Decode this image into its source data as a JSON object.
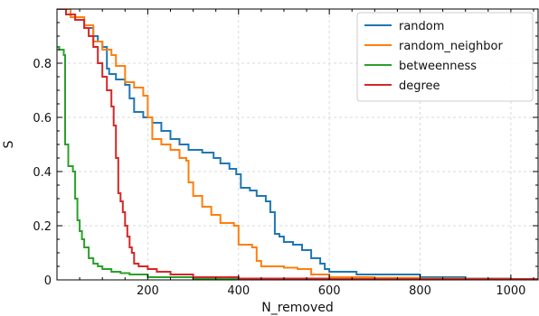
{
  "chart_data": {
    "type": "line",
    "title": "",
    "xlabel": "N_removed",
    "ylabel": "S",
    "xlim": [
      0,
      1060
    ],
    "ylim": [
      0,
      1.0
    ],
    "xticks": [
      200,
      400,
      600,
      800,
      1000
    ],
    "xtick_labels": [
      "200",
      "400",
      "600",
      "800",
      "1000"
    ],
    "yticks": [
      0,
      0.2,
      0.4,
      0.6,
      0.8
    ],
    "ytick_labels": [
      "0",
      "0.2",
      "0.4",
      "0.6",
      "0.8"
    ],
    "grid": true,
    "legend_placement": "top-right",
    "series": [
      {
        "name": "random",
        "color": "#1f77b4",
        "points": [
          [
            0,
            1.0
          ],
          [
            20,
            0.98
          ],
          [
            40,
            0.96
          ],
          [
            60,
            0.93
          ],
          [
            80,
            0.9
          ],
          [
            90,
            0.88
          ],
          [
            100,
            0.86
          ],
          [
            110,
            0.78
          ],
          [
            115,
            0.76
          ],
          [
            130,
            0.74
          ],
          [
            150,
            0.72
          ],
          [
            160,
            0.67
          ],
          [
            170,
            0.62
          ],
          [
            190,
            0.6
          ],
          [
            210,
            0.58
          ],
          [
            230,
            0.55
          ],
          [
            250,
            0.52
          ],
          [
            270,
            0.5
          ],
          [
            290,
            0.48
          ],
          [
            320,
            0.47
          ],
          [
            345,
            0.45
          ],
          [
            360,
            0.43
          ],
          [
            380,
            0.41
          ],
          [
            395,
            0.39
          ],
          [
            405,
            0.34
          ],
          [
            425,
            0.33
          ],
          [
            440,
            0.31
          ],
          [
            460,
            0.29
          ],
          [
            470,
            0.25
          ],
          [
            480,
            0.17
          ],
          [
            490,
            0.16
          ],
          [
            500,
            0.14
          ],
          [
            520,
            0.13
          ],
          [
            540,
            0.11
          ],
          [
            560,
            0.08
          ],
          [
            580,
            0.06
          ],
          [
            590,
            0.04
          ],
          [
            600,
            0.03
          ],
          [
            650,
            0.03
          ],
          [
            660,
            0.02
          ],
          [
            700,
            0.02
          ],
          [
            800,
            0.01
          ],
          [
            900,
            0.005
          ],
          [
            1000,
            0.003
          ],
          [
            1060,
            0.002
          ]
        ]
      },
      {
        "name": "random_neighbor",
        "color": "#ff7f0e",
        "points": [
          [
            0,
            1.0
          ],
          [
            30,
            0.97
          ],
          [
            60,
            0.94
          ],
          [
            80,
            0.88
          ],
          [
            100,
            0.85
          ],
          [
            120,
            0.83
          ],
          [
            130,
            0.79
          ],
          [
            150,
            0.73
          ],
          [
            170,
            0.71
          ],
          [
            190,
            0.68
          ],
          [
            200,
            0.6
          ],
          [
            210,
            0.52
          ],
          [
            230,
            0.5
          ],
          [
            250,
            0.48
          ],
          [
            270,
            0.45
          ],
          [
            285,
            0.44
          ],
          [
            290,
            0.36
          ],
          [
            300,
            0.31
          ],
          [
            320,
            0.27
          ],
          [
            340,
            0.24
          ],
          [
            360,
            0.21
          ],
          [
            390,
            0.2
          ],
          [
            400,
            0.13
          ],
          [
            430,
            0.12
          ],
          [
            440,
            0.07
          ],
          [
            450,
            0.05
          ],
          [
            500,
            0.045
          ],
          [
            530,
            0.04
          ],
          [
            560,
            0.02
          ],
          [
            600,
            0.01
          ],
          [
            700,
            0.008
          ],
          [
            800,
            0.005
          ],
          [
            900,
            0.004
          ],
          [
            1000,
            0.003
          ],
          [
            1060,
            0.002
          ]
        ]
      },
      {
        "name": "betweenness",
        "color": "#2ca02c",
        "points": [
          [
            0,
            0.86
          ],
          [
            5,
            0.85
          ],
          [
            15,
            0.83
          ],
          [
            18,
            0.5
          ],
          [
            25,
            0.42
          ],
          [
            35,
            0.4
          ],
          [
            40,
            0.3
          ],
          [
            45,
            0.22
          ],
          [
            50,
            0.18
          ],
          [
            55,
            0.15
          ],
          [
            60,
            0.12
          ],
          [
            70,
            0.08
          ],
          [
            80,
            0.06
          ],
          [
            90,
            0.05
          ],
          [
            100,
            0.04
          ],
          [
            120,
            0.03
          ],
          [
            140,
            0.025
          ],
          [
            160,
            0.02
          ],
          [
            200,
            0.01
          ],
          [
            300,
            0.005
          ],
          [
            500,
            0.003
          ],
          [
            800,
            0.002
          ],
          [
            1060,
            0.001
          ]
        ]
      },
      {
        "name": "degree",
        "color": "#d62728",
        "points": [
          [
            0,
            1.0
          ],
          [
            20,
            0.98
          ],
          [
            40,
            0.96
          ],
          [
            60,
            0.93
          ],
          [
            70,
            0.9
          ],
          [
            80,
            0.86
          ],
          [
            90,
            0.8
          ],
          [
            100,
            0.75
          ],
          [
            110,
            0.7
          ],
          [
            120,
            0.64
          ],
          [
            125,
            0.57
          ],
          [
            130,
            0.45
          ],
          [
            135,
            0.32
          ],
          [
            140,
            0.29
          ],
          [
            145,
            0.25
          ],
          [
            150,
            0.2
          ],
          [
            155,
            0.16
          ],
          [
            160,
            0.12
          ],
          [
            165,
            0.1
          ],
          [
            170,
            0.06
          ],
          [
            180,
            0.05
          ],
          [
            200,
            0.04
          ],
          [
            220,
            0.03
          ],
          [
            250,
            0.02
          ],
          [
            300,
            0.01
          ],
          [
            400,
            0.005
          ],
          [
            600,
            0.003
          ],
          [
            1060,
            0.001
          ]
        ]
      }
    ]
  }
}
